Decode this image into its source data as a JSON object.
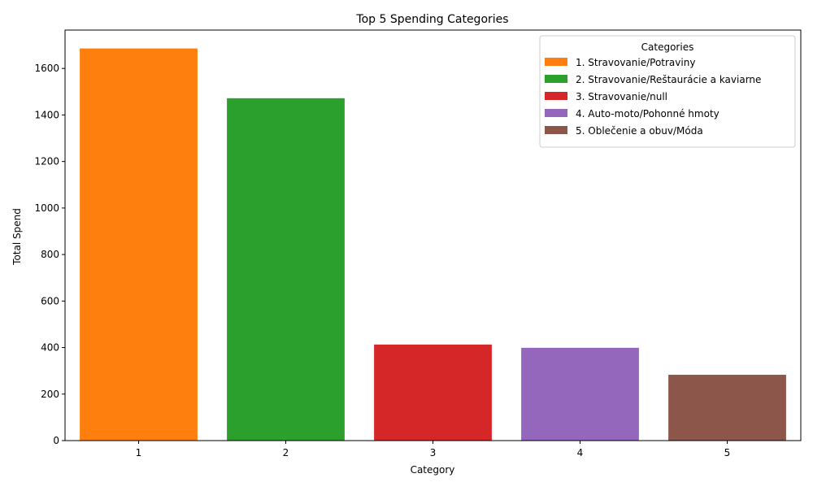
{
  "chart_data": {
    "type": "bar",
    "title": "Top 5 Spending Categories",
    "xlabel": "Category",
    "ylabel": "Total Spend",
    "categories": [
      "1",
      "2",
      "3",
      "4",
      "5"
    ],
    "values": [
      1686,
      1472,
      413,
      399,
      283
    ],
    "colors": [
      "#ff7f0e",
      "#2ca02c",
      "#d62728",
      "#9467bd",
      "#8c564b"
    ],
    "ylim": [
      0,
      1765
    ],
    "yticks": [
      0,
      200,
      400,
      600,
      800,
      1000,
      1200,
      1400,
      1600
    ],
    "grid": false,
    "legend": {
      "title": "Categories",
      "position": "top-right",
      "entries": [
        "1. Stravovanie/Potraviny",
        "2. Stravovanie/Reštaurácie a kaviarne",
        "3. Stravovanie/null",
        "4. Auto-moto/Pohonné hmoty",
        "5. Oblečenie a obuv/Móda"
      ]
    }
  }
}
